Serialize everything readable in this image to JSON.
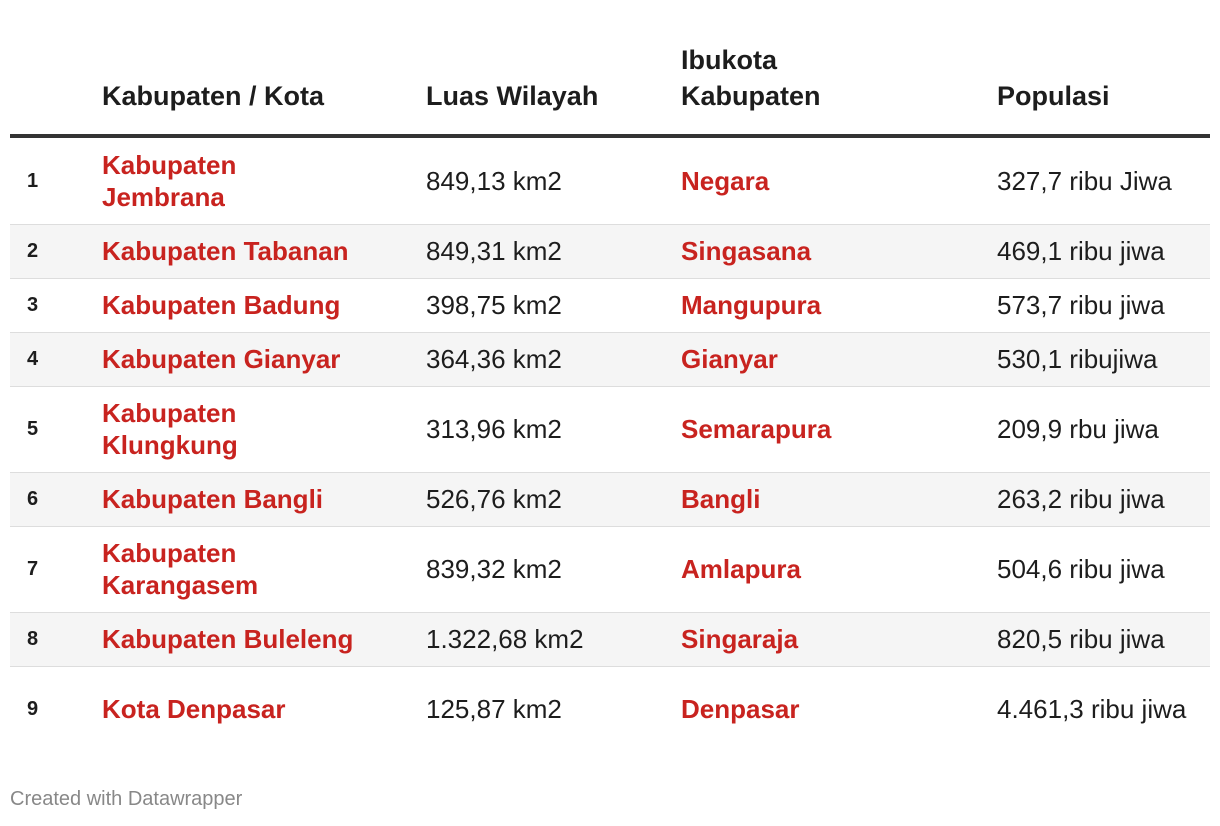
{
  "chart_data": {
    "type": "table",
    "columns": [
      "",
      "Kabupaten / Kota",
      "Luas Wilayah",
      "Ibukota Kabupaten",
      "Populasi"
    ],
    "rows": [
      {
        "no": "1",
        "name": "Kabupaten Jembrana",
        "area": "849,13 km2",
        "capital": "Negara",
        "population": "327,7 ribu Jiwa"
      },
      {
        "no": "2",
        "name": "Kabupaten Tabanan",
        "area": "849,31 km2",
        "capital": "Singasana",
        "population": "469,1 ribu jiwa"
      },
      {
        "no": "3",
        "name": "Kabupaten Badung",
        "area": "398,75 km2",
        "capital": "Mangupura",
        "population": "573,7 ribu jiwa"
      },
      {
        "no": "4",
        "name": "Kabupaten Gianyar",
        "area": "364,36 km2",
        "capital": "Gianyar",
        "population": "530,1 ribujiwa"
      },
      {
        "no": "5",
        "name": "Kabupaten Klungkung",
        "area": "313,96 km2",
        "capital": "Semarapura",
        "population": "209,9 rbu jiwa"
      },
      {
        "no": "6",
        "name": "Kabupaten Bangli",
        "area": "526,76 km2",
        "capital": "Bangli",
        "population": "263,2 ribu jiwa"
      },
      {
        "no": "7",
        "name": "Kabupaten Karangasem",
        "area": "839,32 km2",
        "capital": "Amlapura",
        "population": "504,6 ribu jiwa"
      },
      {
        "no": "8",
        "name": "Kabupaten Buleleng",
        "area": "1.322,68 km2",
        "capital": "Singaraja",
        "population": "820,5 ribu jiwa"
      },
      {
        "no": "9",
        "name": "Kota Denpasar",
        "area": "125,87 km2",
        "capital": "Denpasar",
        "population": "4.461,3 ribu jiwa"
      }
    ],
    "row_heights": [
      88,
      54,
      54,
      54,
      86,
      54,
      86,
      54,
      86
    ]
  },
  "colors": {
    "link_red": "#c8231f",
    "header_rule": "#333333",
    "stripe": "#f5f5f5",
    "footer": "#888888"
  },
  "footer": {
    "credit": "Created with Datawrapper"
  }
}
